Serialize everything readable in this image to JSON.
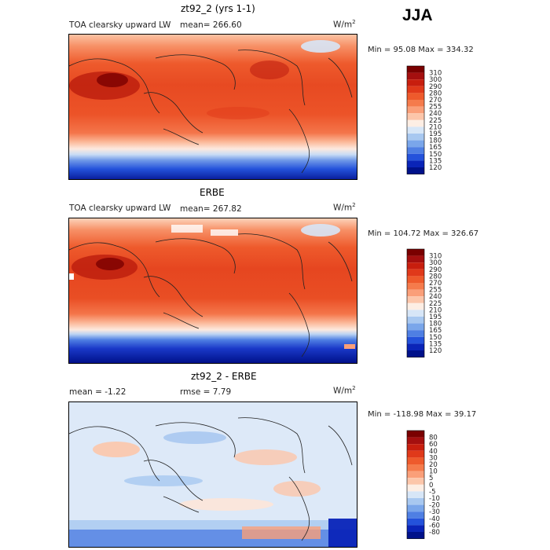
{
  "season": "JJA",
  "units_main": "W/m",
  "units_sup": "2",
  "panels": [
    {
      "title": "zt92_2 (yrs 1-1)",
      "variable": "TOA clearsky upward LW",
      "mean_text": "mean= 266.60",
      "minmax_text": "Min =  95.08 Max = 334.32"
    },
    {
      "title": "ERBE",
      "variable": "TOA clearsky upward LW",
      "mean_text": "mean= 267.82",
      "minmax_text": "Min = 104.72 Max = 326.67"
    },
    {
      "title": "zt92_2 - ERBE",
      "mean_text": "mean =   -1.22",
      "rmse_text": "rmse =   7.79",
      "minmax_text": "Min = -118.98 Max =  39.17"
    }
  ],
  "colorbar_abs": {
    "labels": [
      "310",
      "300",
      "290",
      "280",
      "270",
      "255",
      "240",
      "225",
      "210",
      "195",
      "180",
      "165",
      "150",
      "135",
      "120"
    ],
    "colors": [
      "#7a0000",
      "#a50f0f",
      "#c81e0e",
      "#e0391a",
      "#ee5a2c",
      "#f57b4c",
      "#fa9f79",
      "#fcc6aa",
      "#fdeee4",
      "#d7e6f7",
      "#a8c8f0",
      "#7aa6ea",
      "#4f7fe3",
      "#2452db",
      "#0a24b8",
      "#00118a"
    ]
  },
  "colorbar_diff": {
    "labels": [
      "80",
      "60",
      "40",
      "30",
      "20",
      "10",
      "5",
      "0",
      "-5",
      "-10",
      "-20",
      "-30",
      "-40",
      "-60",
      "-80"
    ],
    "colors": [
      "#7a0000",
      "#a50f0f",
      "#c81e0e",
      "#e0391a",
      "#ee5a2c",
      "#f57b4c",
      "#fa9f79",
      "#fcc6aa",
      "#fdeee4",
      "#d7e6f7",
      "#a8c8f0",
      "#7aa6ea",
      "#4f7fe3",
      "#2452db",
      "#0a24b8",
      "#00118a"
    ]
  },
  "chart_data": [
    {
      "type": "heatmap",
      "title": "zt92_2 (yrs 1-1)",
      "variable": "TOA clearsky upward LW",
      "units": "W/m2",
      "season": "JJA",
      "mean": 266.6,
      "min": 95.08,
      "max": 334.32,
      "colorbar_levels": [
        120,
        135,
        150,
        165,
        180,
        195,
        210,
        225,
        240,
        255,
        270,
        280,
        290,
        300,
        310
      ]
    },
    {
      "type": "heatmap",
      "title": "ERBE",
      "variable": "TOA clearsky upward LW",
      "units": "W/m2",
      "season": "JJA",
      "mean": 267.82,
      "min": 104.72,
      "max": 326.67,
      "colorbar_levels": [
        120,
        135,
        150,
        165,
        180,
        195,
        210,
        225,
        240,
        255,
        270,
        280,
        290,
        300,
        310
      ]
    },
    {
      "type": "heatmap",
      "title": "zt92_2 - ERBE",
      "units": "W/m2",
      "season": "JJA",
      "mean": -1.22,
      "rmse": 7.79,
      "min": -118.98,
      "max": 39.17,
      "colorbar_levels": [
        -80,
        -60,
        -40,
        -30,
        -20,
        -10,
        -5,
        0,
        5,
        10,
        20,
        30,
        40,
        60,
        80
      ]
    }
  ]
}
